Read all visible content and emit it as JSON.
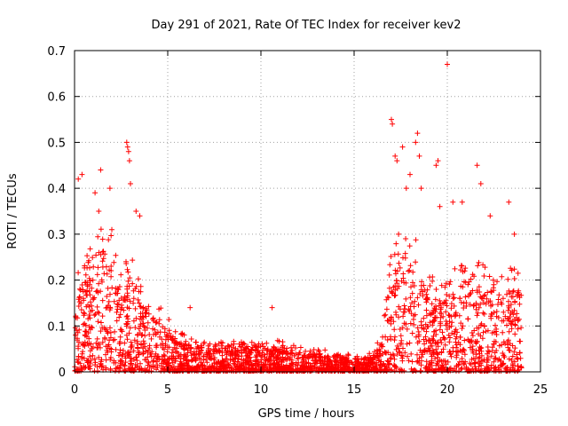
{
  "chart_data": {
    "type": "scatter",
    "title": "Day 291 of 2021, Rate Of TEC Index for receiver kev2",
    "xlabel": "GPS time / hours",
    "ylabel": "ROTI / TECUs",
    "xlim": [
      0,
      25
    ],
    "ylim": [
      0,
      0.7
    ],
    "xticks": [
      0,
      5,
      10,
      15,
      20,
      25
    ],
    "yticks": [
      0,
      0.1,
      0.2,
      0.3,
      0.4,
      0.5,
      0.6,
      0.7
    ],
    "grid": true,
    "marker": "+",
    "color": "#ff0000",
    "envelope": [
      [
        0.0,
        0.16
      ],
      [
        0.5,
        0.2
      ],
      [
        1.0,
        0.21
      ],
      [
        1.5,
        0.25
      ],
      [
        2.0,
        0.23
      ],
      [
        2.5,
        0.17
      ],
      [
        3.0,
        0.2
      ],
      [
        3.5,
        0.15
      ],
      [
        4.0,
        0.13
      ],
      [
        4.5,
        0.11
      ],
      [
        5.0,
        0.09
      ],
      [
        5.5,
        0.07
      ],
      [
        6.0,
        0.06
      ],
      [
        7.0,
        0.05
      ],
      [
        8.0,
        0.05
      ],
      [
        9.0,
        0.05
      ],
      [
        10.0,
        0.05
      ],
      [
        11.0,
        0.05
      ],
      [
        12.0,
        0.04
      ],
      [
        13.0,
        0.04
      ],
      [
        14.0,
        0.03
      ],
      [
        15.0,
        0.025
      ],
      [
        16.0,
        0.03
      ],
      [
        16.5,
        0.07
      ],
      [
        17.0,
        0.2
      ],
      [
        17.5,
        0.26
      ],
      [
        18.0,
        0.25
      ],
      [
        18.5,
        0.22
      ],
      [
        19.0,
        0.18
      ],
      [
        19.5,
        0.14
      ],
      [
        20.0,
        0.16
      ],
      [
        20.5,
        0.18
      ],
      [
        21.0,
        0.2
      ],
      [
        21.5,
        0.19
      ],
      [
        22.0,
        0.18
      ],
      [
        22.5,
        0.15
      ],
      [
        23.0,
        0.16
      ],
      [
        23.5,
        0.18
      ],
      [
        24.0,
        0.17
      ]
    ],
    "outliers": [
      [
        0.2,
        0.42
      ],
      [
        0.4,
        0.43
      ],
      [
        1.1,
        0.39
      ],
      [
        1.3,
        0.35
      ],
      [
        1.4,
        0.44
      ],
      [
        1.9,
        0.4
      ],
      [
        2.0,
        0.31
      ],
      [
        2.8,
        0.5
      ],
      [
        2.85,
        0.49
      ],
      [
        2.9,
        0.48
      ],
      [
        2.95,
        0.46
      ],
      [
        3.0,
        0.41
      ],
      [
        3.3,
        0.35
      ],
      [
        3.5,
        0.34
      ],
      [
        6.2,
        0.14
      ],
      [
        10.6,
        0.14
      ],
      [
        17.0,
        0.55
      ],
      [
        17.05,
        0.54
      ],
      [
        17.2,
        0.47
      ],
      [
        17.3,
        0.46
      ],
      [
        17.6,
        0.49
      ],
      [
        17.8,
        0.4
      ],
      [
        18.0,
        0.43
      ],
      [
        18.3,
        0.5
      ],
      [
        18.4,
        0.52
      ],
      [
        18.5,
        0.47
      ],
      [
        18.6,
        0.4
      ],
      [
        19.4,
        0.45
      ],
      [
        19.5,
        0.46
      ],
      [
        19.6,
        0.36
      ],
      [
        20.0,
        0.67
      ],
      [
        20.3,
        0.37
      ],
      [
        20.8,
        0.37
      ],
      [
        21.6,
        0.45
      ],
      [
        21.8,
        0.41
      ],
      [
        22.3,
        0.34
      ],
      [
        23.3,
        0.37
      ],
      [
        23.6,
        0.3
      ]
    ]
  }
}
